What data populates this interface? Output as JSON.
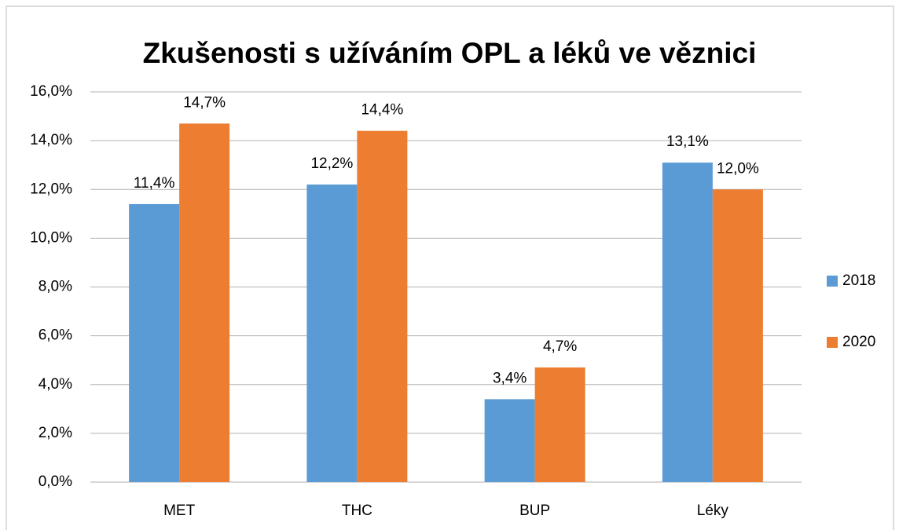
{
  "chart_data": {
    "type": "bar",
    "title": "Zkušenosti s užíváním OPL a léků ve věznici",
    "categories": [
      "MET",
      "THC",
      "BUP",
      "Léky"
    ],
    "series": [
      {
        "name": "2018",
        "color": "#5b9bd5",
        "values": [
          11.4,
          12.2,
          3.4,
          13.1
        ],
        "value_labels": [
          "11,4%",
          "12,2%",
          "3,4%",
          "13,1%"
        ]
      },
      {
        "name": "2020",
        "color": "#ed7d31",
        "values": [
          14.7,
          14.4,
          4.7,
          12.0
        ],
        "value_labels": [
          "14,7%",
          "14,4%",
          "4,7%",
          "12,0%"
        ]
      }
    ],
    "ylim": [
      0,
      16
    ],
    "yticks": [
      {
        "value": 0,
        "label": "0,0%"
      },
      {
        "value": 2,
        "label": "2,0%"
      },
      {
        "value": 4,
        "label": "4,0%"
      },
      {
        "value": 6,
        "label": "6,0%"
      },
      {
        "value": 8,
        "label": "8,0%"
      },
      {
        "value": 10,
        "label": "10,0%"
      },
      {
        "value": 12,
        "label": "12,0%"
      },
      {
        "value": 14,
        "label": "14,0%"
      },
      {
        "value": 16,
        "label": "16,0%"
      }
    ],
    "grid": true,
    "legend": "right"
  }
}
